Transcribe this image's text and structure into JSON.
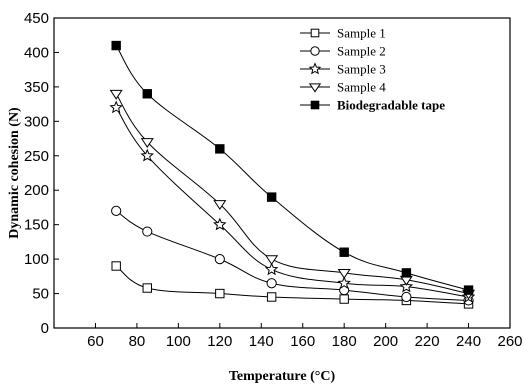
{
  "chart_data": {
    "type": "line",
    "title": "",
    "xlabel": "Temperature (°C)",
    "ylabel": "Dynamic cohesion (N)",
    "xlim": [
      40,
      260
    ],
    "ylim": [
      0,
      450
    ],
    "xticks": [
      60,
      80,
      100,
      120,
      140,
      160,
      180,
      200,
      220,
      240,
      260
    ],
    "yticks": [
      0,
      50,
      100,
      150,
      200,
      250,
      300,
      350,
      400,
      450
    ],
    "grid": false,
    "legend_position": "top-right",
    "series": [
      {
        "name": "Sample 1",
        "marker": "open-square",
        "bold": false,
        "x": [
          70,
          85,
          120,
          145,
          180,
          210,
          240
        ],
        "y": [
          90,
          58,
          50,
          45,
          42,
          40,
          35
        ]
      },
      {
        "name": "Sample 2",
        "marker": "open-circle",
        "bold": false,
        "x": [
          70,
          85,
          120,
          145,
          180,
          210,
          240
        ],
        "y": [
          170,
          140,
          100,
          65,
          55,
          45,
          40
        ]
      },
      {
        "name": "Sample 3",
        "marker": "open-star",
        "bold": false,
        "x": [
          70,
          85,
          120,
          145,
          180,
          210,
          240
        ],
        "y": [
          320,
          250,
          150,
          85,
          65,
          60,
          45
        ]
      },
      {
        "name": "Sample 4",
        "marker": "open-triangle-down",
        "bold": false,
        "x": [
          70,
          85,
          120,
          145,
          180,
          210,
          240
        ],
        "y": [
          340,
          270,
          180,
          100,
          80,
          70,
          50
        ]
      },
      {
        "name": "Biodegradable tape",
        "marker": "filled-square",
        "bold": true,
        "x": [
          70,
          85,
          120,
          145,
          180,
          210,
          240
        ],
        "y": [
          410,
          340,
          260,
          190,
          110,
          80,
          55
        ]
      }
    ]
  }
}
